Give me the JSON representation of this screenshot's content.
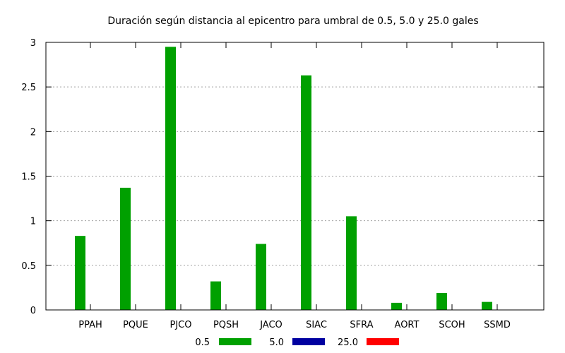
{
  "chart_data": {
    "type": "bar",
    "title": "Duración según distancia al epicentro para umbral de 0.5, 5.0 y 25.0 gales",
    "xlabel": "",
    "ylabel": "",
    "ylim": [
      0,
      3
    ],
    "yticks": [
      "0",
      "0.5",
      "1",
      "1.5",
      "2",
      "2.5",
      "3"
    ],
    "ytick_values": [
      0,
      0.5,
      1,
      1.5,
      2,
      2.5,
      3
    ],
    "grid": true,
    "legend_position": "bottom",
    "categories": [
      "PPAH",
      "PQUE",
      "PJCO",
      "PQSH",
      "JACO",
      "SIAC",
      "SFRA",
      "AORT",
      "SCOH",
      "SSMD"
    ],
    "series": [
      {
        "name": "0.5",
        "color": "#00a000",
        "values": [
          0.83,
          1.37,
          2.95,
          0.32,
          0.74,
          2.63,
          1.05,
          0.08,
          0.19,
          0.09
        ]
      },
      {
        "name": "5.0",
        "color": "#0000a0",
        "values": [
          0,
          0,
          0,
          0,
          0,
          0,
          0,
          0,
          0,
          0
        ]
      },
      {
        "name": "25.0",
        "color": "#ff0000",
        "values": [
          0,
          0,
          0,
          0,
          0,
          0,
          0,
          0,
          0,
          0
        ]
      }
    ]
  }
}
